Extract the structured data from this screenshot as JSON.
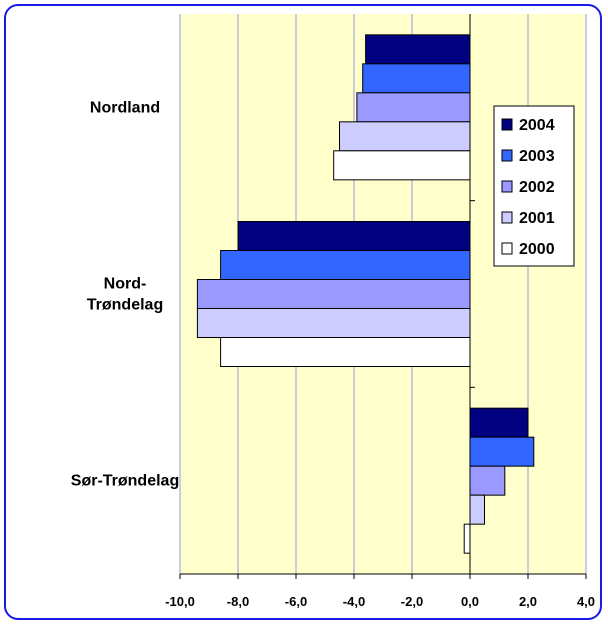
{
  "chart_data": {
    "type": "bar",
    "orientation": "horizontal",
    "categories": [
      "Nordland",
      "Nord-\nTrøndelag",
      "Sør-Trøndelag"
    ],
    "series": [
      {
        "name": "2004",
        "color": "#000080",
        "values": [
          -3.6,
          -8.0,
          2.0
        ]
      },
      {
        "name": "2003",
        "color": "#3366ff",
        "values": [
          -3.7,
          -8.6,
          2.2
        ]
      },
      {
        "name": "2002",
        "color": "#9999ff",
        "values": [
          -3.9,
          -9.4,
          1.2
        ]
      },
      {
        "name": "2001",
        "color": "#ccccff",
        "values": [
          -4.5,
          -9.4,
          0.5
        ]
      },
      {
        "name": "2000",
        "color": "#ffffff",
        "values": [
          -4.7,
          -8.6,
          -0.2
        ]
      }
    ],
    "xlim": [
      -10,
      4
    ],
    "xticks": [
      -10,
      -8,
      -6,
      -4,
      -2,
      0,
      2,
      4
    ],
    "xtick_labels": [
      "-10,0",
      "-8,0",
      "-6,0",
      "-4,0",
      "-2,0",
      "0,0",
      "2,0",
      "4,0"
    ],
    "grid": "vertical",
    "legend_position": "right",
    "plot_background": "#ffffcc",
    "gridline_color": "#9999dd",
    "title": "",
    "xlabel": "",
    "ylabel": ""
  }
}
